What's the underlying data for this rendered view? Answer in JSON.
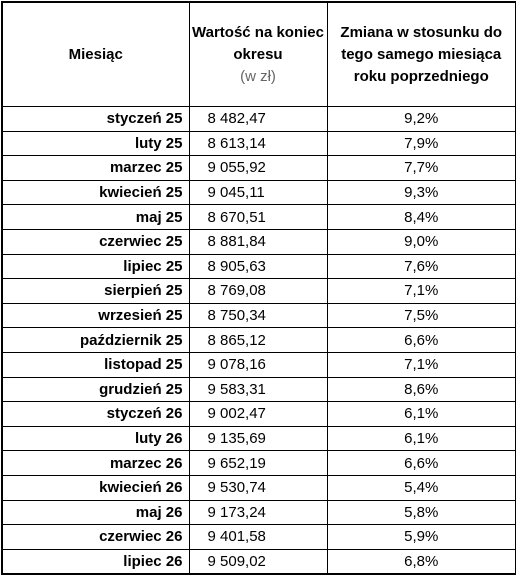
{
  "table": {
    "header": {
      "month": "Miesiąc",
      "value": "Wartość na koniec okresu",
      "value_unit": "(w zł)",
      "change": "Zmiana w stosunku do tego samego miesiąca roku poprzedniego"
    },
    "rows": [
      [
        "styczeń 25",
        "8 482,47",
        "9,2%"
      ],
      [
        "luty 25",
        "8 613,14",
        "7,9%"
      ],
      [
        "marzec 25",
        "9 055,92",
        "7,7%"
      ],
      [
        "kwiecień 25",
        "9 045,11",
        "9,3%"
      ],
      [
        "maj 25",
        "8 670,51",
        "8,4%"
      ],
      [
        "czerwiec 25",
        "8 881,84",
        "9,0%"
      ],
      [
        "lipiec 25",
        "8 905,63",
        "7,6%"
      ],
      [
        "sierpień 25",
        "8 769,08",
        "7,1%"
      ],
      [
        "wrzesień 25",
        "8 750,34",
        "7,5%"
      ],
      [
        "październik 25",
        "8 865,12",
        "6,6%"
      ],
      [
        "listopad 25",
        "9 078,16",
        "7,1%"
      ],
      [
        "grudzień 25",
        "9 583,31",
        "8,6%"
      ],
      [
        "styczeń 26",
        "9 002,47",
        "6,1%"
      ],
      [
        "luty 26",
        "9 135,69",
        "6,1%"
      ],
      [
        "marzec 26",
        "9 652,19",
        "6,6%"
      ],
      [
        "kwiecień 26",
        "9 530,74",
        "5,4%"
      ],
      [
        "maj 26",
        "9 173,24",
        "5,8%"
      ],
      [
        "czerwiec 26",
        "9 401,58",
        "5,9%"
      ],
      [
        "lipiec 26",
        "9 509,02",
        "6,8%"
      ]
    ]
  }
}
